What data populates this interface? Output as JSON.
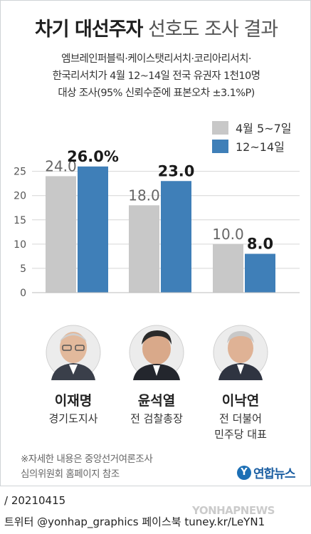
{
  "header": {
    "title_bold": "차기 대선주자",
    "title_light": "선호도 조사 결과",
    "subtitle_lines": [
      "엠브레인퍼블릭·케이스탯리서치·코리아리서치·",
      "한국리서치가 4월 12~14일 전국 유권자 1천10명",
      "대상 조사(95% 신뢰수준에 표본오차 ±3.1%P)"
    ]
  },
  "chart_data": {
    "type": "bar",
    "categories": [
      "이재명",
      "윤석열",
      "이낙연"
    ],
    "series": [
      {
        "name": "4월 5~7일",
        "values": [
          24.0,
          18.0,
          10.0
        ],
        "labels": [
          "24.0",
          "18.0",
          "10.0"
        ],
        "color": "#c8c8c8"
      },
      {
        "name": "12~14일",
        "values": [
          26.0,
          23.0,
          8.0
        ],
        "labels": [
          "26.0%",
          "23.0",
          "8.0"
        ],
        "color": "#3f7fb8"
      }
    ],
    "ylim": [
      0,
      27
    ],
    "yticks": [
      0,
      5,
      10,
      15,
      20,
      25
    ],
    "ytick_labels": [
      "0",
      "5",
      "10",
      "15",
      "20",
      "25"
    ],
    "grid": true,
    "legend_position": "top-right"
  },
  "candidates": [
    {
      "name": "이재명",
      "role_lines": [
        "경기도지사"
      ]
    },
    {
      "name": "윤석열",
      "role_lines": [
        "전 검찰총장"
      ]
    },
    {
      "name": "이낙연",
      "role_lines": [
        "전 더불어",
        "민주당 대표"
      ]
    }
  ],
  "notes": [
    "※자세한 내용은 중앙선거여론조사",
    "심의위원회 홈페이지 참조"
  ],
  "logo": {
    "mark": "Y",
    "text": "연합뉴스"
  },
  "footer": {
    "date": "/ 20210415",
    "social": "트위터 @yonhap_graphics  페이스북 tuney.kr/LeYN1"
  },
  "watermark": "YONHAPNEWS"
}
